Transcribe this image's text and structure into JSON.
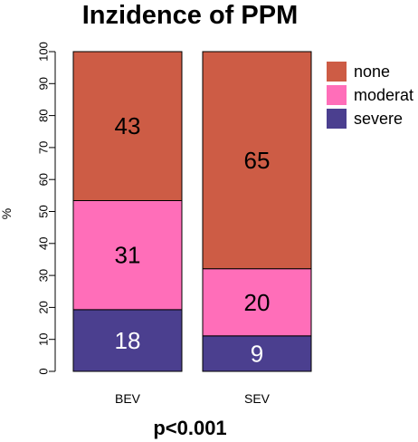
{
  "chart_data": {
    "type": "bar",
    "stacked": true,
    "title": "Inzidence of PPM",
    "subtitle": "p<0.001",
    "ylabel": "%",
    "xlabel": "",
    "ylim": [
      0,
      100
    ],
    "yticks": [
      0,
      10,
      20,
      30,
      40,
      50,
      60,
      70,
      80,
      90,
      100
    ],
    "categories": [
      "BEV",
      "SEV"
    ],
    "series": [
      {
        "name": "severe",
        "color": "#4b3f8f",
        "label_color": "#ffffff",
        "values": [
          18,
          9
        ],
        "plotted_height": [
          19.3,
          11.1
        ]
      },
      {
        "name": "moderat",
        "color": "#ff6eb9",
        "label_color": "#000000",
        "values": [
          31,
          20
        ],
        "plotted_height": [
          34.1,
          21
        ]
      },
      {
        "name": "none",
        "color": "#cd5c45",
        "label_color": "#000000",
        "values": [
          43,
          65
        ],
        "plotted_height": [
          46.6,
          67.9
        ]
      }
    ],
    "legend": {
      "position": "top-right",
      "order": [
        "none",
        "moderat",
        "severe"
      ]
    },
    "grid": false
  }
}
